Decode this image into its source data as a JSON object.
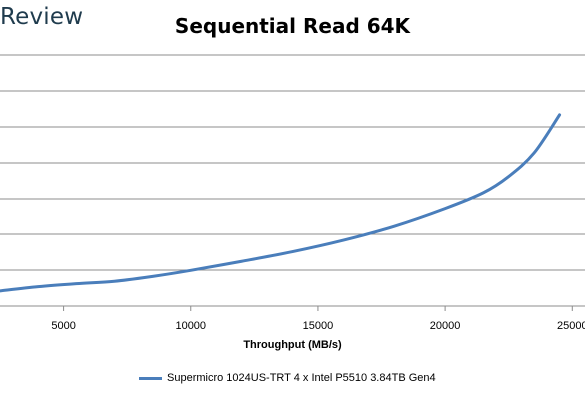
{
  "logo": "Review",
  "chart_data": {
    "type": "line",
    "title": "Sequential Read 64K",
    "xlabel": "Throughput (MB/s)",
    "ylabel": "",
    "xlim": [
      2500,
      25500
    ],
    "xticks": [
      5000,
      10000,
      15000,
      20000,
      25000
    ],
    "grid": true,
    "legend": "bottom",
    "series": [
      {
        "name": "Supermicro 1024US-TRT 4 x Intel P5510 3.84TB Gen4",
        "color": "#4a7ebb",
        "x": [
          2500,
          4000,
          5500,
          7000,
          8500,
          10000,
          12000,
          14000,
          16000,
          18000,
          20000,
          21500,
          22500,
          23500,
          24500
        ],
        "y": [
          0.5,
          0.64,
          0.74,
          0.82,
          0.98,
          1.18,
          1.48,
          1.8,
          2.18,
          2.64,
          3.22,
          3.74,
          4.28,
          5.06,
          6.32
        ]
      }
    ],
    "ylim": [
      0,
      8.3
    ]
  }
}
